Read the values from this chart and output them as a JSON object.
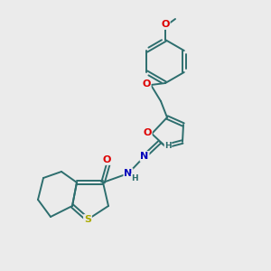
{
  "background_color": "#ebebeb",
  "bond_color": "#2d6e6e",
  "atom_colors": {
    "O": "#dd0000",
    "N": "#0000bb",
    "S": "#aaaa00",
    "H": "#2d6e6e"
  },
  "line_width": 1.4,
  "font_size": 7.5
}
